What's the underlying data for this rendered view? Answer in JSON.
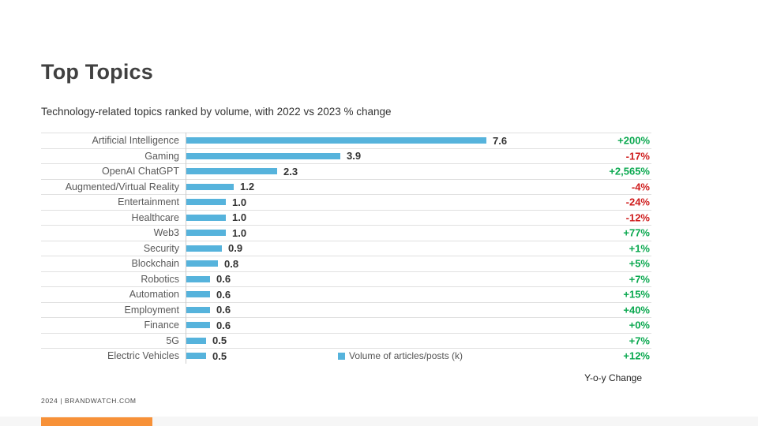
{
  "header": {
    "title": "Top Topics",
    "subtitle": "Technology-related topics ranked by volume, with 2022 vs 2023 % change"
  },
  "chart_data": {
    "type": "bar",
    "orientation": "horizontal",
    "title": "Top Topics",
    "subtitle": "Technology-related topics ranked by volume, with 2022 vs 2023 % change",
    "xlabel": "Volume of articles/posts (k)",
    "xlim": [
      0,
      11.6
    ],
    "grid": "horizontal-row-separators",
    "legend_position": "bottom-center-inside",
    "bar_color": "#56b3dc",
    "up_color": "#0aa84f",
    "down_color": "#cf1d1d",
    "categories": [
      "Artificial Intelligence",
      "Gaming",
      "OpenAI ChatGPT",
      "Augmented/Virtual Reality",
      "Entertainment",
      "Healthcare",
      "Web3",
      "Security",
      "Blockchain",
      "Robotics",
      "Automation",
      "Employment",
      "Finance",
      "5G",
      "Electric Vehicles"
    ],
    "series": [
      {
        "name": "Volume of articles/posts (k)",
        "values": [
          7.6,
          3.9,
          2.3,
          1.2,
          1.0,
          1.0,
          1.0,
          0.9,
          0.8,
          0.6,
          0.6,
          0.6,
          0.6,
          0.5,
          0.5
        ]
      },
      {
        "name": "Y-o-y Change",
        "values": [
          "+200%",
          "-17%",
          "+2,565%",
          "-4%",
          "-24%",
          "-12%",
          "+77%",
          "+1%",
          "+5%",
          "+7%",
          "+15%",
          "+40%",
          "+0%",
          "+7%",
          "+12%"
        ]
      }
    ],
    "rows": [
      {
        "label": "Artificial Intelligence",
        "value": 7.6,
        "value_label": "7.6",
        "change": "+200%",
        "trend": "up"
      },
      {
        "label": "Gaming",
        "value": 3.9,
        "value_label": "3.9",
        "change": "-17%",
        "trend": "down"
      },
      {
        "label": "OpenAI ChatGPT",
        "value": 2.3,
        "value_label": "2.3",
        "change": "+2,565%",
        "trend": "up"
      },
      {
        "label": "Augmented/Virtual Reality",
        "value": 1.2,
        "value_label": "1.2",
        "change": "-4%",
        "trend": "down"
      },
      {
        "label": "Entertainment",
        "value": 1.0,
        "value_label": "1.0",
        "change": "-24%",
        "trend": "down"
      },
      {
        "label": "Healthcare",
        "value": 1.0,
        "value_label": "1.0",
        "change": "-12%",
        "trend": "down"
      },
      {
        "label": "Web3",
        "value": 1.0,
        "value_label": "1.0",
        "change": "+77%",
        "trend": "up"
      },
      {
        "label": "Security",
        "value": 0.9,
        "value_label": "0.9",
        "change": "+1%",
        "trend": "up"
      },
      {
        "label": "Blockchain",
        "value": 0.8,
        "value_label": "0.8",
        "change": "+5%",
        "trend": "up"
      },
      {
        "label": "Robotics",
        "value": 0.6,
        "value_label": "0.6",
        "change": "+7%",
        "trend": "up"
      },
      {
        "label": "Automation",
        "value": 0.6,
        "value_label": "0.6",
        "change": "+15%",
        "trend": "up"
      },
      {
        "label": "Employment",
        "value": 0.6,
        "value_label": "0.6",
        "change": "+40%",
        "trend": "up"
      },
      {
        "label": "Finance",
        "value": 0.6,
        "value_label": "0.6",
        "change": "+0%",
        "trend": "up"
      },
      {
        "label": "5G",
        "value": 0.5,
        "value_label": "0.5",
        "change": "+7%",
        "trend": "up"
      },
      {
        "label": "Electric Vehicles",
        "value": 0.5,
        "value_label": "0.5",
        "change": "+12%",
        "trend": "up"
      }
    ],
    "legend": {
      "label": "Volume of articles/posts (k)"
    },
    "change_column_label": "Y-o-y Change"
  },
  "footer": {
    "credit": "2024 | BRANDWATCH.COM",
    "accent_color": "#f79138",
    "strip_color": "#f6f6f6"
  }
}
